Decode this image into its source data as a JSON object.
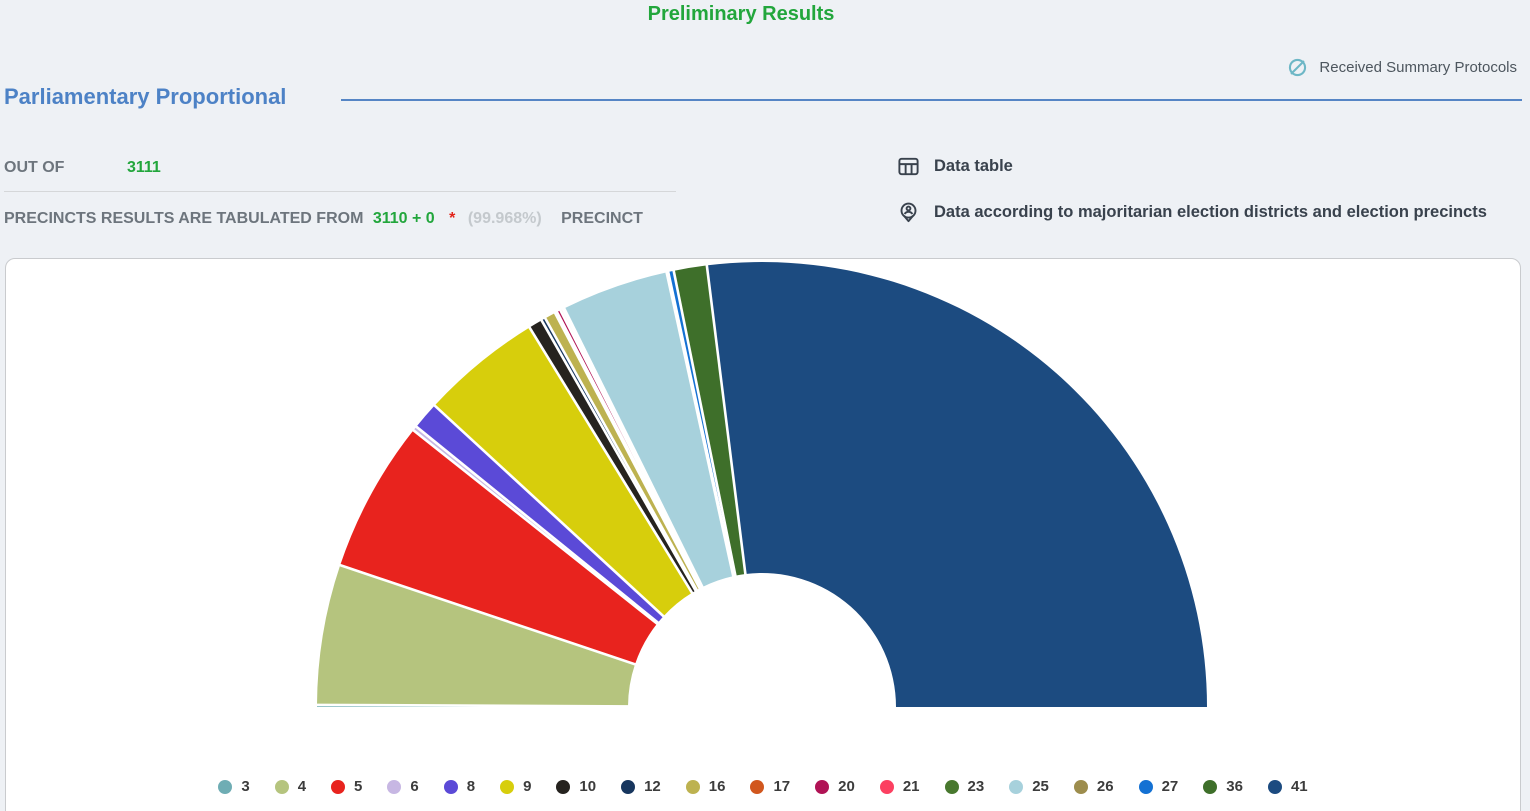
{
  "page": {
    "title": "Preliminary Results",
    "header_link": {
      "label": "Received Summary Protocols",
      "icon": "link-icon"
    },
    "section": {
      "title": "Parliamentary Proportional"
    },
    "stats": {
      "out_of_label": "OUT OF",
      "out_of_value": "3111",
      "tabulated_label": "PRECINCTS RESULTS ARE TABULATED FROM",
      "tabulated_value": "3110 + 0",
      "asterisk": "*",
      "tabulated_percent": "(99.968%)",
      "precinct_label": "PRECINCT"
    },
    "actions": [
      {
        "label": "Data table",
        "icon": "data-table-icon"
      },
      {
        "label": "Data according to majoritarian election districts and election precincts",
        "icon": "location-pin-icon"
      }
    ]
  },
  "colors": {
    "title_green": "#22a63c",
    "heading_blue": "#4d82c6",
    "label_gray": "#6d757d",
    "muted_gray": "#c4c9cd",
    "asterisk_red": "#e2231a",
    "dark_slate": "#39424d",
    "link_icon_blue": "#6db7c6",
    "page_background": "#eef1f5",
    "card_background": "#ffffff"
  },
  "chart_data": {
    "type": "pie",
    "variant": "half-donut",
    "title": "",
    "unit": "percent of proportional vote (small slices estimated from chart)",
    "legend_position": "bottom",
    "start_angle_deg": 180,
    "end_angle_deg": 0,
    "series": [
      {
        "label": "3",
        "value": 0.15,
        "color": "#6fadb4"
      },
      {
        "label": "4",
        "value": 10.17,
        "color": "#b5c47e"
      },
      {
        "label": "5",
        "value": 11.03,
        "color": "#e8231e"
      },
      {
        "label": "6",
        "value": 0.33,
        "color": "#c7b7e3"
      },
      {
        "label": "8",
        "value": 2.0,
        "color": "#5b4ad7"
      },
      {
        "label": "9",
        "value": 8.81,
        "color": "#d7ce0c"
      },
      {
        "label": "10",
        "value": 1.0,
        "color": "#26231f"
      },
      {
        "label": "12",
        "value": 0.3,
        "color": "#17365e"
      },
      {
        "label": "16",
        "value": 0.8,
        "color": "#bdb250"
      },
      {
        "label": "17",
        "value": 0.15,
        "color": "#d1571e"
      },
      {
        "label": "20",
        "value": 0.28,
        "color": "#b01355"
      },
      {
        "label": "21",
        "value": 0.18,
        "color": "#fc4061"
      },
      {
        "label": "23",
        "value": 0.12,
        "color": "#48782e"
      },
      {
        "label": "25",
        "value": 7.78,
        "color": "#a7d1dc"
      },
      {
        "label": "26",
        "value": 0.12,
        "color": "#9d8d4d"
      },
      {
        "label": "27",
        "value": 0.4,
        "color": "#1471d3"
      },
      {
        "label": "36",
        "value": 2.4,
        "color": "#3e6f2a"
      },
      {
        "label": "41",
        "value": 53.93,
        "color": "#1c4b80"
      }
    ]
  }
}
